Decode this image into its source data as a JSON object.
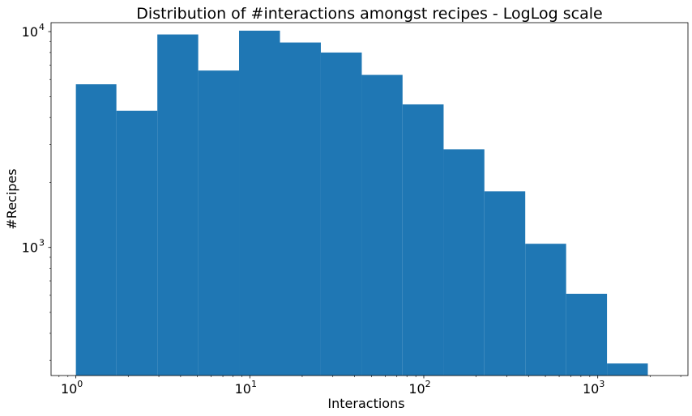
{
  "chart_data": {
    "type": "bar",
    "title": "Distribution of #interactions amongst recipes - LogLog scale",
    "xlabel": "Interactions",
    "ylabel": "#Recipes",
    "xscale": "log",
    "yscale": "log",
    "xlim": [
      0.72,
      3300
    ],
    "ylim": [
      255,
      11000
    ],
    "bar_color": "#1f77b4",
    "x_ticks": [
      {
        "value": 1,
        "base": "10",
        "exp": "0"
      },
      {
        "value": 10,
        "base": "10",
        "exp": "1"
      },
      {
        "value": 100,
        "base": "10",
        "exp": "2"
      },
      {
        "value": 1000,
        "base": "10",
        "exp": "3"
      }
    ],
    "y_ticks": [
      {
        "value": 1000,
        "base": "10",
        "exp": "3"
      },
      {
        "value": 10000,
        "base": "10",
        "exp": "4"
      }
    ],
    "bins": [
      {
        "x0": 1.0,
        "x1": 1.71,
        "count": 5700
      },
      {
        "x0": 1.71,
        "x1": 2.94,
        "count": 4300
      },
      {
        "x0": 2.94,
        "x1": 5.05,
        "count": 9700
      },
      {
        "x0": 5.05,
        "x1": 8.67,
        "count": 6600
      },
      {
        "x0": 8.67,
        "x1": 14.9,
        "count": 10100
      },
      {
        "x0": 14.9,
        "x1": 25.6,
        "count": 8900
      },
      {
        "x0": 25.6,
        "x1": 44.0,
        "count": 8000
      },
      {
        "x0": 44.0,
        "x1": 75.5,
        "count": 6300
      },
      {
        "x0": 75.5,
        "x1": 130.0,
        "count": 4600
      },
      {
        "x0": 130.0,
        "x1": 223.0,
        "count": 2850
      },
      {
        "x0": 223.0,
        "x1": 383.0,
        "count": 1820
      },
      {
        "x0": 383.0,
        "x1": 658.0,
        "count": 1040
      },
      {
        "x0": 658.0,
        "x1": 1130.0,
        "count": 610
      },
      {
        "x0": 1130.0,
        "x1": 1940.0,
        "count": 290
      }
    ]
  }
}
